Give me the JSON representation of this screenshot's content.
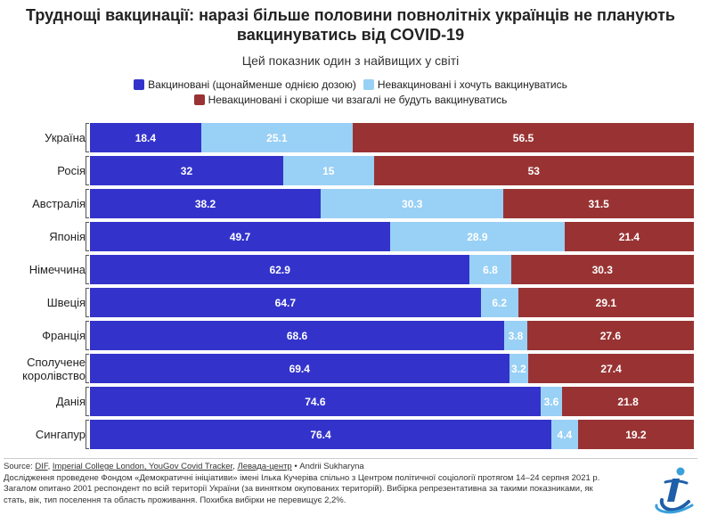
{
  "title": "Труднощі вакцинації: наразі більше половини повнолітніх українців не планують вакцинуватись від COVID-19",
  "subtitle": "Цей показник один з найвищих у світі",
  "chart_data": {
    "type": "bar",
    "orientation": "horizontal",
    "stacked": true,
    "xlim": [
      0,
      100
    ],
    "categories": [
      "Україна",
      "Росія",
      "Австралія",
      "Японія",
      "Німеччина",
      "Швеція",
      "Франція",
      "Сполучене королівство",
      "Данія",
      "Сингапур"
    ],
    "category_lines": [
      [
        "Україна"
      ],
      [
        "Росія"
      ],
      [
        "Австралія"
      ],
      [
        "Японія"
      ],
      [
        "Німеччина"
      ],
      [
        "Швеція"
      ],
      [
        "Франція"
      ],
      [
        "Сполучене",
        "королівство"
      ],
      [
        "Данія"
      ],
      [
        "Сингапур"
      ]
    ],
    "series": [
      {
        "name": "Вакциновані (щонайменше однією дозою)",
        "color": "#3333cc",
        "label_color": "#ffffff",
        "values": [
          18.4,
          32,
          38.2,
          49.7,
          62.9,
          64.7,
          68.6,
          69.4,
          74.6,
          76.4
        ],
        "labels": [
          "18.4",
          "32",
          "38.2",
          "49.7",
          "62.9",
          "64.7",
          "68.6",
          "69.4",
          "74.6",
          "76.4"
        ]
      },
      {
        "name": "Невакциновані і хочуть вакцинуватись",
        "color": "#99d0f5",
        "label_color": "#ffffff",
        "values": [
          25.1,
          15,
          30.3,
          28.9,
          6.8,
          6.2,
          3.8,
          3.2,
          3.6,
          4.4
        ],
        "labels": [
          "25.1",
          "15",
          "30.3",
          "28.9",
          "6.8",
          "6.2",
          "3.8",
          "3.2",
          "3.6",
          "4.4"
        ]
      },
      {
        "name": "Невакциновані і скоріше чи взагалі не будуть вакцинуватись",
        "color": "#993333",
        "label_color": "#ffffff",
        "values": [
          56.5,
          53,
          31.5,
          21.4,
          30.3,
          29.1,
          27.6,
          27.4,
          21.8,
          19.2
        ],
        "labels": [
          "56.5",
          "53",
          "31.5",
          "21.4",
          "30.3",
          "29.1",
          "27.6",
          "27.4",
          "21.8",
          "19.2"
        ]
      }
    ],
    "legend_rows": [
      [
        0,
        1
      ],
      [
        2
      ]
    ]
  },
  "footer": {
    "source_label": "Source: ",
    "sources": [
      "DIF",
      "Imperial College London, YouGov Covid Tracker",
      "Левада-центр"
    ],
    "sep1": ", ",
    "sep2": ", ",
    "author": " • Andrii Sukharyna",
    "notes": [
      "Дослідження проведене Фондом «Демократичні ініціативи» імені Ілька Кучеріва спільно з Центром політичної соціології протягом 14–24 серпня 2021 р.",
      "Загалом опитано 2001 респондент по всій території України (за винятком окупованих територій). Вибірка репрезентативна за такими показниками, як",
      "стать, вік, тип поселення та область проживання. Похибка вибірки не перевищує 2,2%."
    ]
  },
  "logo": {
    "icon": "dif-logo-icon",
    "colors": [
      "#1f5fa8",
      "#3aa0dc"
    ]
  }
}
